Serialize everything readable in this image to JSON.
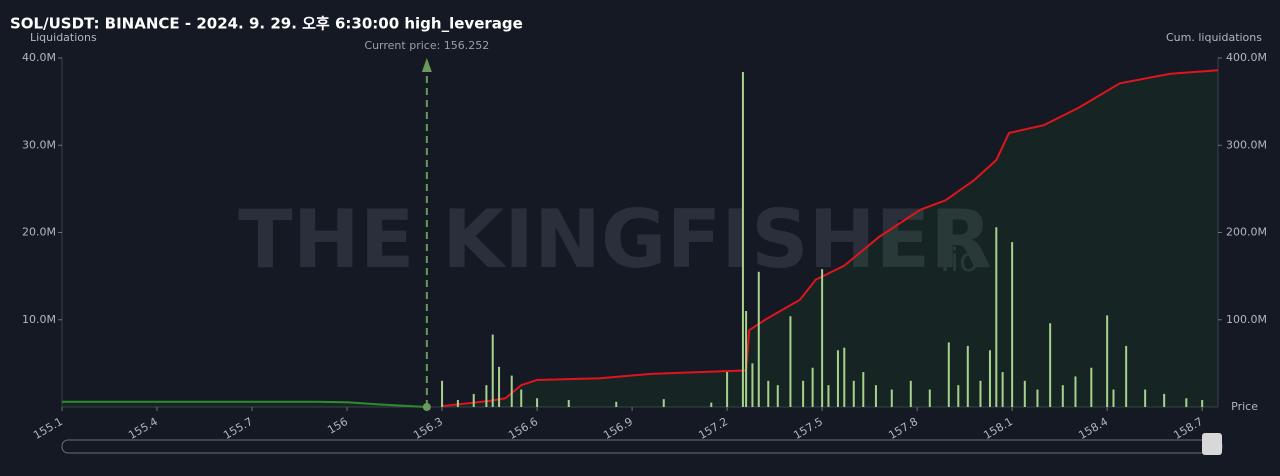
{
  "chart_data": {
    "type": "bar",
    "title": "SOL/USDT: BINANCE - 2024. 9. 29. 오후 6:30:00 high_leverage",
    "y_label": "Liquidations",
    "y2_label": "Cum. liquidations",
    "x_label": "Price",
    "watermark": "THE KINGFISHER",
    "watermark_suffix": ".io",
    "current_price": {
      "value": 156.252,
      "label": "Current price: 156.252"
    },
    "xlim": [
      155.1,
      158.75
    ],
    "xticks": [
      155.1,
      155.4,
      155.7,
      156,
      156.3,
      156.6,
      156.9,
      157.2,
      157.5,
      157.8,
      158.1,
      158.4,
      158.7
    ],
    "ylim": [
      0,
      40000000
    ],
    "yticks": [
      {
        "value": 10000000,
        "label": "10.0M"
      },
      {
        "value": 20000000,
        "label": "20.0M"
      },
      {
        "value": 30000000,
        "label": "30.0M"
      },
      {
        "value": 40000000,
        "label": "40.0M"
      }
    ],
    "y2lim": [
      0,
      400000000
    ],
    "y2ticks": [
      {
        "value": 100000000,
        "label": "100.0M"
      },
      {
        "value": 200000000,
        "label": "200.0M"
      },
      {
        "value": 300000000,
        "label": "300.0M"
      },
      {
        "value": 400000000,
        "label": "400.0M"
      }
    ],
    "series": [
      {
        "type": "bar",
        "color": "#a5d38c",
        "x": [
          156.3,
          156.35,
          156.4,
          156.44,
          156.46,
          156.48,
          156.52,
          156.55,
          156.6,
          156.7,
          156.85,
          157.0,
          157.15,
          157.2,
          157.25,
          157.26,
          157.28,
          157.3,
          157.33,
          157.36,
          157.4,
          157.44,
          157.47,
          157.5,
          157.52,
          157.55,
          157.57,
          157.6,
          157.63,
          157.67,
          157.72,
          157.78,
          157.84,
          157.9,
          157.93,
          157.96,
          158.0,
          158.03,
          158.05,
          158.07,
          158.1,
          158.14,
          158.18,
          158.22,
          158.26,
          158.3,
          158.35,
          158.4,
          158.42,
          158.46,
          158.52,
          158.58,
          158.65,
          158.7
        ],
        "values": [
          3000000,
          800000,
          1500000,
          2500000,
          8300000,
          4600000,
          3600000,
          2000000,
          1000000,
          800000,
          600000,
          900000,
          500000,
          4000000,
          38400000,
          11000000,
          5000000,
          15500000,
          3000000,
          2500000,
          10400000,
          3000000,
          4500000,
          15800000,
          2500000,
          6500000,
          6800000,
          3000000,
          4000000,
          2500000,
          2000000,
          3000000,
          2000000,
          7400000,
          2500000,
          7000000,
          3000000,
          6500000,
          20600000,
          4000000,
          18900000,
          3000000,
          2000000,
          9600000,
          2500000,
          3500000,
          4500000,
          10500000,
          2000000,
          7000000,
          2000000,
          1500000,
          1000000,
          800000
        ]
      },
      {
        "type": "line",
        "axis": "y2",
        "color": "#2e8b2e",
        "x": [
          155.1,
          155.9,
          156.0,
          156.1,
          156.2,
          156.25
        ],
        "values": [
          6000000,
          6000000,
          5500000,
          3000000,
          1000000,
          0
        ]
      },
      {
        "type": "line",
        "axis": "y2",
        "color": "#e0141e",
        "x": [
          156.3,
          156.45,
          156.5,
          156.55,
          156.6,
          156.8,
          156.96,
          157.11,
          157.26,
          157.27,
          157.32,
          157.43,
          157.48,
          157.57,
          157.68,
          157.81,
          157.89,
          157.98,
          158.05,
          158.09,
          158.2,
          158.31,
          158.44,
          158.6,
          158.75
        ],
        "values": [
          1000000,
          7000000,
          10000000,
          25000000,
          31000000,
          33000000,
          38000000,
          40000000,
          42000000,
          88000000,
          100000000,
          123000000,
          146000000,
          162000000,
          195000000,
          226000000,
          237000000,
          260000000,
          283000000,
          314000000,
          323000000,
          343000000,
          371000000,
          382000000,
          386000000
        ]
      }
    ]
  }
}
